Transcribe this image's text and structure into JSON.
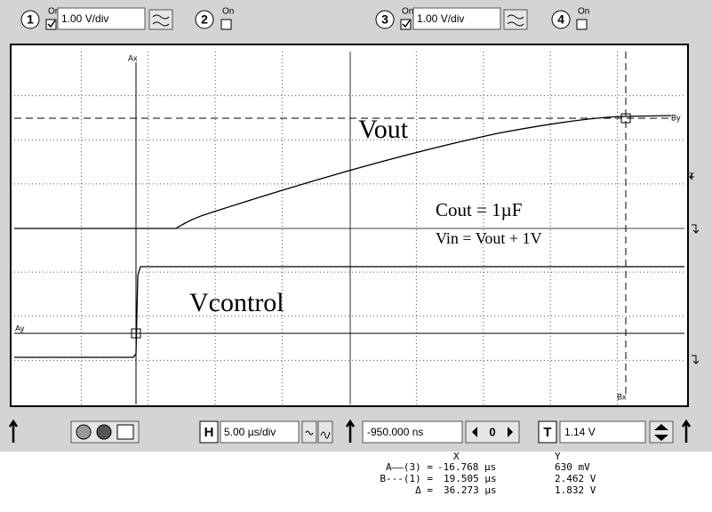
{
  "toolbar": {
    "channels": [
      {
        "number": "1",
        "on": "On",
        "scale": "1.00 V/div"
      },
      {
        "number": "2",
        "on": "On"
      },
      {
        "number": "3",
        "on": "On",
        "scale": "1.00 V/div"
      },
      {
        "number": "4",
        "on": "On"
      }
    ]
  },
  "screen": {
    "cursor_labels": {
      "ax": "Ax",
      "ay": "Ay",
      "bx": "Bx",
      "by": "By"
    },
    "trigger_marker": "T",
    "annotations": [
      "Vout",
      "Cout = 1µF",
      "Vin = Vout + 1V",
      "Vcontrol"
    ]
  },
  "bottom_bar": {
    "horizontal_button": "H",
    "timebase": "5.00 µs/div",
    "position": "-950.000 ns",
    "zero_button": "0",
    "trigger_button": "T",
    "trigger_level": "1.14 V"
  },
  "readout": {
    "header": [
      "X",
      "Y"
    ],
    "rows": [
      [
        "A——(3) =",
        "-16.768 µs",
        "630 mV"
      ],
      [
        "B---(1) =",
        "19.505 µs",
        "2.462 V"
      ],
      [
        "Δ =",
        "36.273 µs",
        "1.832 V"
      ]
    ]
  }
}
